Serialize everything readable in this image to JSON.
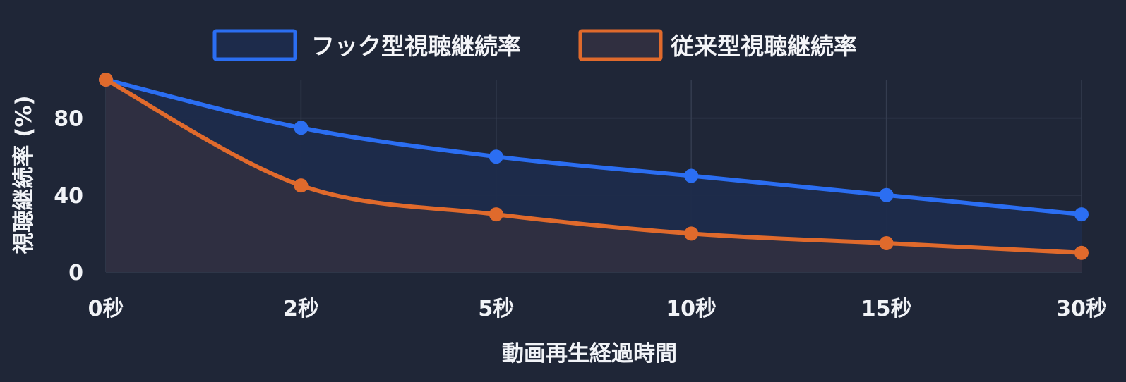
{
  "chart_data": {
    "type": "line",
    "categories": [
      "0秒",
      "2秒",
      "5秒",
      "10秒",
      "15秒",
      "30秒"
    ],
    "series": [
      {
        "name": "フック型視聴継続率",
        "values": [
          100,
          75,
          60,
          50,
          40,
          30
        ],
        "color": "#2b6ef2",
        "fill": "#1d2b4b"
      },
      {
        "name": "従来型視聴継続率",
        "values": [
          100,
          45,
          30,
          20,
          15,
          10
        ],
        "color": "#e06a2c",
        "fill": "#302f40"
      }
    ],
    "xlabel": "動画再生経過時間",
    "ylabel": "視聴継続率 (%)",
    "ylim": [
      0,
      100
    ],
    "yticks": [
      0,
      40,
      80
    ],
    "grid": true,
    "legend": "top-center",
    "area_fill": true,
    "smooth": true
  }
}
